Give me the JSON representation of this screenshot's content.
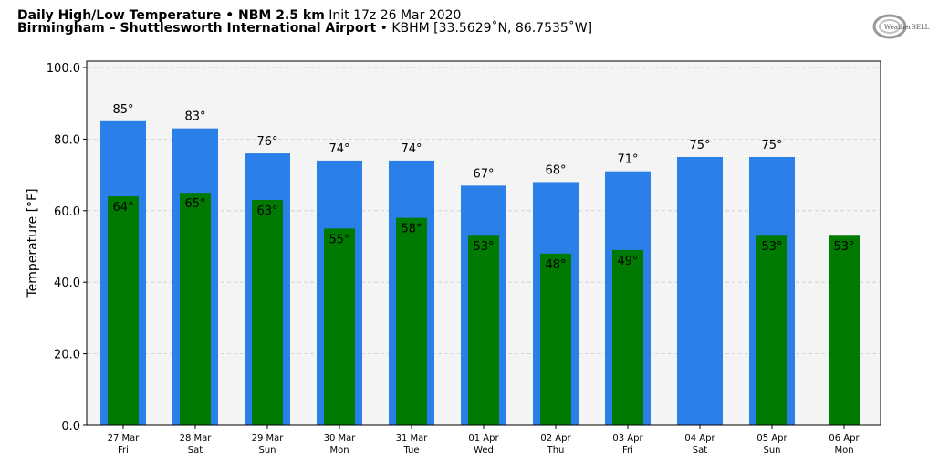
{
  "header": {
    "title_bold": "Daily High/Low Temperature • NBM 2.5 km",
    "title_init": "Init 17z 26 Mar 2020",
    "location_bold": "Birmingham – Shuttlesworth International Airport",
    "location_detail": "• KBHM [33.5629˚N, 86.7535˚W]",
    "logo_text": "WeatherBELL"
  },
  "chart_data": {
    "type": "bar",
    "title": "Daily High/Low Temperature • NBM 2.5 km",
    "ylabel": "Temperature [°F]",
    "xlabel": "",
    "ylim": [
      0,
      100
    ],
    "yticks": [
      "0.0",
      "20.0",
      "40.0",
      "60.0",
      "80.0",
      "100.0"
    ],
    "grid": true,
    "categories": [
      {
        "date": "27 Mar",
        "day": "Fri"
      },
      {
        "date": "28 Mar",
        "day": "Sat"
      },
      {
        "date": "29 Mar",
        "day": "Sun"
      },
      {
        "date": "30 Mar",
        "day": "Mon"
      },
      {
        "date": "31 Mar",
        "day": "Tue"
      },
      {
        "date": "01 Apr",
        "day": "Wed"
      },
      {
        "date": "02 Apr",
        "day": "Thu"
      },
      {
        "date": "03 Apr",
        "day": "Fri"
      },
      {
        "date": "04 Apr",
        "day": "Sat"
      },
      {
        "date": "05 Apr",
        "day": "Sun"
      },
      {
        "date": "06 Apr",
        "day": "Mon"
      }
    ],
    "series": [
      {
        "values": [
          85,
          83,
          76,
          74,
          74,
          67,
          68,
          71,
          75,
          75,
          null
        ],
        "color": "#2b7fe8"
      },
      {
        "values": [
          64,
          65,
          63,
          55,
          58,
          53,
          48,
          49,
          null,
          53,
          53
        ],
        "color": "#007a00"
      }
    ],
    "label_suffix": "°"
  }
}
